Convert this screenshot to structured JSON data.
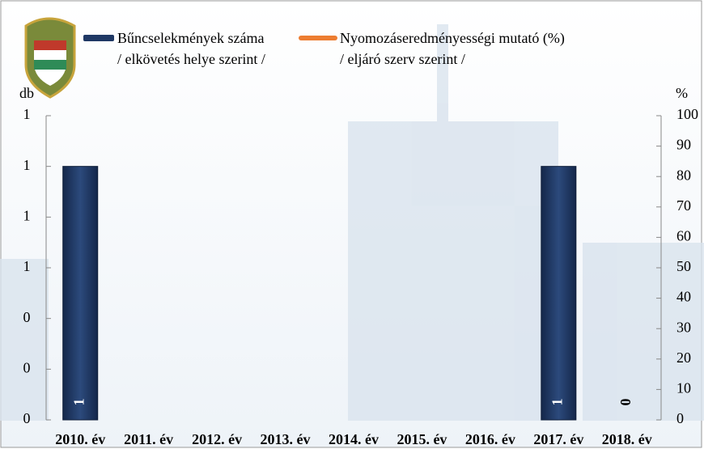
{
  "chart_data": {
    "type": "bar",
    "categories": [
      "2010. év",
      "2011. év",
      "2012. év",
      "2013. év",
      "2014. év",
      "2015. év",
      "2016. év",
      "2017. év",
      "2018. év"
    ],
    "y_label": "db",
    "y2_label": "%",
    "ylim": [
      0,
      1.2
    ],
    "yticks": [
      {
        "value": 0,
        "label": "0"
      },
      {
        "value": 0.2,
        "label": "0"
      },
      {
        "value": 0.4,
        "label": "0"
      },
      {
        "value": 0.6,
        "label": "1"
      },
      {
        "value": 0.8,
        "label": "1"
      },
      {
        "value": 1.0,
        "label": "1"
      },
      {
        "value": 1.2,
        "label": "1"
      }
    ],
    "y2lim": [
      0,
      100
    ],
    "y2ticks": [
      0,
      10,
      20,
      30,
      40,
      50,
      60,
      70,
      80,
      90,
      100
    ],
    "series": [
      {
        "name": "Bűncselekmények száma\n/ elkövetés helye szerint /",
        "type": "bar",
        "color": "#1f3864",
        "values": [
          1,
          null,
          null,
          null,
          null,
          null,
          null,
          1,
          0
        ]
      },
      {
        "name": "Nyomozáseredményességi mutató (%)\n/ eljáró szerv szerint /",
        "type": "line",
        "color": "#ed7d31",
        "axis": "y2",
        "values": [
          null,
          null,
          null,
          null,
          null,
          null,
          null,
          null,
          null
        ]
      }
    ]
  }
}
